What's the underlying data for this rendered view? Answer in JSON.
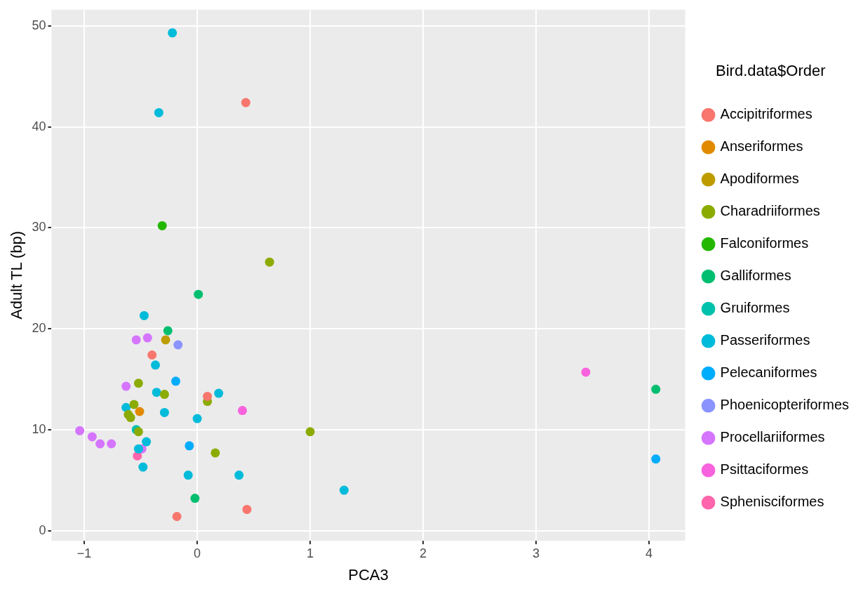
{
  "chart_data": {
    "type": "scatter",
    "xlabel": "PCA3",
    "ylabel": "Adult TL (bp)",
    "legend_title": "Bird.data$Order",
    "legend": "right",
    "grid": true,
    "marker": "circle",
    "xlim": [
      -1.29,
      4.32
    ],
    "ylim": [
      -1.0,
      51.6
    ],
    "xticks": [
      {
        "value": -1,
        "label": "−1"
      },
      0,
      1,
      2,
      3,
      4
    ],
    "yticks": [
      0,
      10,
      20,
      30,
      40,
      50
    ],
    "series": [
      {
        "name": "Accipitriformes",
        "color": "#f8766d",
        "x": [
          0.43,
          -0.4,
          0.09,
          -0.18,
          0.44
        ],
        "values": [
          42.4,
          17.4,
          13.3,
          1.4,
          2.1
        ]
      },
      {
        "name": "Anseriformes",
        "color": "#e18a00",
        "x": [
          -0.51
        ],
        "values": [
          11.8
        ]
      },
      {
        "name": "Apodiformes",
        "color": "#be9c00",
        "x": [
          -0.28
        ],
        "values": [
          18.9
        ]
      },
      {
        "name": "Charadriiformes",
        "color": "#8cab00",
        "x": [
          0.64,
          -0.52,
          -0.56,
          0.09,
          -0.61,
          -0.59,
          1.0,
          0.16,
          -0.29,
          -0.52
        ],
        "values": [
          26.6,
          14.6,
          12.5,
          12.8,
          11.5,
          11.2,
          9.8,
          7.7,
          13.5,
          9.8
        ]
      },
      {
        "name": "Falconiformes",
        "color": "#24b700",
        "x": [
          -0.31
        ],
        "values": [
          30.2
        ]
      },
      {
        "name": "Galliformes",
        "color": "#00be70",
        "x": [
          0.01,
          -0.26,
          4.06,
          -0.02
        ],
        "values": [
          23.4,
          19.8,
          14.0,
          3.2
        ]
      },
      {
        "name": "Gruiformes",
        "color": "#00c1ab",
        "x": [
          -0.54
        ],
        "values": [
          10.0
        ]
      },
      {
        "name": "Passeriformes",
        "color": "#00bbda",
        "x": [
          -0.22,
          -0.34,
          -0.47,
          -0.37,
          -0.36,
          0.19,
          -0.29,
          -0.63,
          0.0,
          -0.45,
          -0.52,
          -0.48,
          -0.08,
          0.37,
          1.3
        ],
        "values": [
          49.3,
          41.4,
          21.3,
          16.4,
          13.7,
          13.6,
          11.7,
          12.2,
          11.1,
          8.8,
          8.1,
          6.3,
          5.5,
          5.5,
          4.0
        ]
      },
      {
        "name": "Pelecaniformes",
        "color": "#00acfc",
        "x": [
          -0.19,
          -0.07,
          4.06
        ],
        "values": [
          14.8,
          8.4,
          7.1
        ]
      },
      {
        "name": "Phoenicopteriformes",
        "color": "#8b93ff",
        "x": [
          -0.17
        ],
        "values": [
          18.4
        ]
      },
      {
        "name": "Procellariiformes",
        "color": "#d575fe",
        "x": [
          -0.54,
          -0.44,
          -0.63,
          -1.04,
          -0.93,
          -0.86,
          -0.76,
          -0.49
        ],
        "values": [
          18.9,
          19.1,
          14.3,
          9.9,
          9.3,
          8.6,
          8.6,
          8.1
        ]
      },
      {
        "name": "Psittaciformes",
        "color": "#f962dd",
        "x": [
          3.44,
          0.4
        ],
        "values": [
          15.7,
          11.9
        ]
      },
      {
        "name": "Sphenisciformes",
        "color": "#ff65ac",
        "x": [
          -0.53
        ],
        "values": [
          7.4
        ]
      }
    ]
  }
}
